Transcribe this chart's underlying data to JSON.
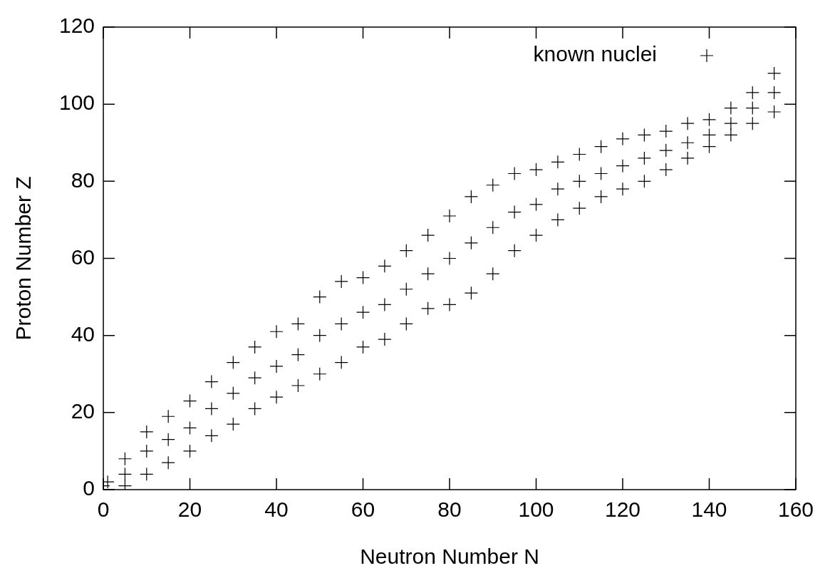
{
  "chart_data": {
    "type": "scatter",
    "xlabel": "Neutron Number N",
    "ylabel": "Proton Number Z",
    "xlim": [
      0,
      160
    ],
    "xticks": [
      0,
      20,
      40,
      60,
      80,
      100,
      120,
      140,
      160
    ],
    "ylim": [
      0,
      120
    ],
    "yticks": [
      0,
      20,
      40,
      60,
      80,
      100,
      120
    ],
    "legend": "top right",
    "marker": "cross",
    "grid": false,
    "series": [
      {
        "name": "known nuclei",
        "color": "#000000",
        "x": [
          0,
          0,
          1,
          5,
          5,
          5,
          10,
          10,
          10,
          15,
          15,
          15,
          20,
          20,
          20,
          25,
          25,
          25,
          30,
          30,
          30,
          35,
          35,
          35,
          40,
          40,
          40,
          45,
          45,
          45,
          50,
          50,
          50,
          55,
          55,
          55,
          60,
          60,
          60,
          65,
          65,
          65,
          70,
          70,
          70,
          75,
          75,
          75,
          80,
          80,
          80,
          85,
          85,
          85,
          90,
          90,
          90,
          95,
          95,
          95,
          100,
          100,
          100,
          105,
          105,
          105,
          110,
          110,
          110,
          115,
          115,
          115,
          120,
          120,
          120,
          125,
          125,
          125,
          130,
          130,
          130,
          135,
          135,
          135,
          140,
          140,
          140,
          145,
          145,
          145,
          150,
          150,
          150,
          155,
          155,
          155
        ],
        "values": [
          0,
          1,
          2,
          1,
          4,
          8,
          4,
          10,
          15,
          7,
          13,
          19,
          10,
          16,
          23,
          14,
          21,
          28,
          17,
          25,
          33,
          21,
          29,
          37,
          24,
          32,
          41,
          27,
          35,
          43,
          30,
          40,
          50,
          33,
          43,
          54,
          37,
          46,
          55,
          39,
          48,
          58,
          43,
          52,
          62,
          47,
          56,
          66,
          48,
          60,
          71,
          51,
          64,
          76,
          56,
          68,
          79,
          62,
          72,
          82,
          66,
          74,
          83,
          70,
          78,
          85,
          73,
          80,
          87,
          76,
          82,
          89,
          78,
          84,
          91,
          80,
          86,
          92,
          83,
          88,
          93,
          86,
          90,
          95,
          89,
          92,
          96,
          92,
          95,
          99,
          95,
          99,
          103,
          98,
          103,
          108
        ]
      }
    ]
  }
}
